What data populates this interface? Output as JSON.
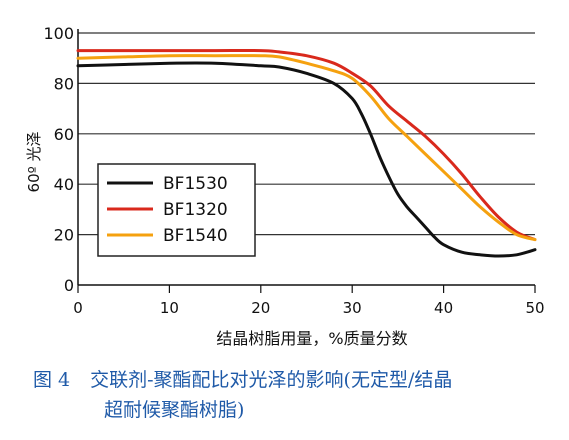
{
  "chart_data": {
    "type": "line",
    "xlabel": "结晶树脂用量，%质量分数",
    "ylabel": "60º 光泽",
    "xlim": [
      0,
      50
    ],
    "ylim": [
      0,
      100
    ],
    "x_ticks": [
      "0",
      "10",
      "20",
      "30",
      "40",
      "50"
    ],
    "y_ticks": [
      "0",
      "20",
      "40",
      "60",
      "80",
      "100"
    ],
    "grid": "horizontal",
    "legend_position": "left-center",
    "series": [
      {
        "name": "BF1530",
        "color": "#111111",
        "x": [
          0,
          5,
          10,
          15,
          20,
          22,
          25,
          28,
          30,
          31,
          32,
          33,
          34,
          35,
          36,
          37,
          38,
          39,
          40,
          42,
          44,
          46,
          48,
          50
        ],
        "y": [
          87,
          87.5,
          88,
          88,
          87,
          86.5,
          84,
          80,
          74,
          68,
          60,
          51,
          43,
          36,
          31,
          27,
          23,
          19,
          16,
          13,
          12,
          11.5,
          12,
          14
        ]
      },
      {
        "name": "BF1320",
        "color": "#d9291c",
        "x": [
          0,
          5,
          10,
          15,
          20,
          22,
          25,
          28,
          30,
          32,
          34,
          36,
          38,
          40,
          42,
          44,
          46,
          48,
          50
        ],
        "y": [
          93,
          93,
          93,
          93,
          93,
          92.5,
          91,
          88,
          84,
          79,
          71,
          65,
          59,
          52,
          44,
          35,
          27,
          21,
          18
        ]
      },
      {
        "name": "BF1540",
        "color": "#f5a10f",
        "x": [
          0,
          5,
          10,
          15,
          20,
          22,
          25,
          28,
          30,
          32,
          34,
          36,
          38,
          40,
          42,
          44,
          46,
          48,
          50
        ],
        "y": [
          90,
          90.5,
          91,
          91,
          91,
          90.5,
          88,
          85,
          82,
          75,
          66,
          59,
          52,
          45,
          38,
          31,
          25,
          20,
          18
        ]
      }
    ]
  },
  "caption": {
    "figure_number": "图 4",
    "line1": "交联剂-聚酯配比对光泽的影响(无定型/结晶",
    "line2": "超耐候聚酯树脂)"
  }
}
